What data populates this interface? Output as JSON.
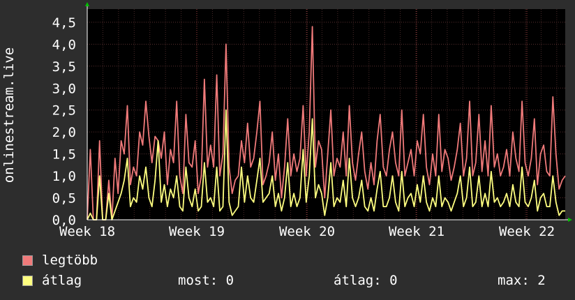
{
  "chart_data": {
    "type": "line",
    "ylabel": "onlinestream.live",
    "ylim": [
      0,
      4.8
    ],
    "yticks": [
      "0,0",
      "0,5",
      "1,0",
      "1,5",
      "2,0",
      "2,5",
      "3,0",
      "3,5",
      "4,0",
      "4,5"
    ],
    "xticks": [
      "Week 18",
      "Week 19",
      "Week 20",
      "Week 21",
      "Week 22"
    ],
    "grid": true,
    "series": [
      {
        "name": "legtöbb",
        "color": "#f07a7a",
        "values": [
          0,
          1.6,
          0,
          0,
          1.8,
          0,
          0,
          0.9,
          0,
          1.4,
          0.6,
          1.8,
          1.5,
          2.6,
          0.8,
          1.2,
          1.0,
          2.0,
          1.7,
          2.7,
          1.9,
          1.3,
          1.9,
          1.8,
          1.4,
          2.0,
          0.8,
          1.6,
          1.3,
          2.7,
          1.0,
          0.6,
          2.4,
          1.3,
          1.2,
          1.8,
          0.6,
          1.0,
          3.2,
          1.2,
          1.7,
          1.2,
          3.3,
          1.0,
          1.5,
          4.0,
          1.2,
          0.6,
          0.9,
          1.0,
          1.8,
          1.3,
          2.2,
          1.2,
          1.4,
          2.0,
          2.7,
          0.8,
          1.0,
          1.3,
          2.0,
          0.9,
          1.5,
          0.5,
          1.2,
          2.3,
          1.0,
          1.5,
          1.1,
          1.4,
          2.6,
          1.0,
          2.0,
          4.4,
          1.2,
          1.8,
          1.6,
          0.5,
          1.5,
          2.5,
          1.0,
          1.4,
          1.2,
          2.0,
          1.0,
          2.6,
          1.3,
          0.9,
          1.5,
          2.0,
          1.1,
          0.7,
          1.3,
          0.8,
          1.8,
          2.4,
          1.2,
          1.0,
          1.6,
          2.0,
          1.3,
          1.0,
          2.5,
          1.0,
          1.3,
          1.6,
          1.0,
          1.8,
          1.5,
          2.4,
          1.2,
          0.8,
          1.5,
          1.0,
          2.4,
          1.1,
          1.6,
          1.4,
          0.9,
          1.2,
          1.6,
          2.2,
          1.0,
          1.4,
          2.7,
          1.0,
          1.3,
          2.4,
          1.1,
          1.8,
          1.0,
          2.6,
          1.2,
          1.5,
          1.0,
          1.2,
          1.6,
          1.0,
          2.0,
          1.4,
          1.1,
          2.7,
          1.3,
          1.0,
          1.4,
          2.3,
          0.8,
          1.5,
          1.7,
          1.1,
          1.0,
          2.8,
          1.5,
          0.7,
          0.9,
          1.0
        ]
      },
      {
        "name": "átlag",
        "color": "#ffff80",
        "values": [
          0,
          0.15,
          0,
          0,
          1.0,
          0,
          0,
          0.6,
          0,
          0.2,
          0.4,
          0.6,
          0.9,
          1.4,
          0.3,
          0.5,
          0.4,
          1.0,
          0.7,
          1.2,
          0.5,
          0.3,
          0.9,
          1.8,
          0.4,
          0.8,
          0.3,
          0.7,
          0.5,
          1.0,
          0.3,
          0.2,
          1.2,
          0.5,
          0.3,
          0.7,
          0.2,
          0.3,
          1.3,
          0.4,
          0.5,
          0.3,
          1.2,
          0.2,
          0.3,
          2.5,
          0.4,
          0.1,
          0.2,
          0.3,
          1.2,
          0.4,
          1.0,
          0.5,
          0.4,
          0.9,
          1.4,
          0.4,
          0.5,
          0.6,
          1.0,
          0.3,
          0.6,
          0.2,
          0.5,
          1.3,
          0.3,
          0.6,
          0.3,
          0.5,
          1.6,
          0.4,
          1.0,
          2.3,
          0.5,
          0.8,
          0.6,
          0.1,
          0.5,
          1.3,
          0.3,
          0.5,
          0.4,
          0.9,
          0.3,
          1.4,
          0.5,
          0.3,
          0.5,
          0.9,
          0.3,
          0.2,
          0.5,
          0.2,
          0.7,
          1.1,
          0.3,
          0.3,
          0.5,
          1.0,
          0.4,
          0.2,
          1.1,
          0.3,
          0.5,
          0.6,
          0.3,
          0.8,
          0.4,
          1.0,
          0.4,
          0.2,
          0.5,
          0.3,
          1.0,
          0.3,
          0.5,
          0.4,
          0.2,
          0.4,
          0.6,
          1.0,
          0.3,
          0.5,
          1.2,
          0.3,
          0.4,
          1.0,
          0.3,
          0.6,
          0.3,
          1.1,
          0.4,
          0.5,
          0.3,
          0.4,
          0.6,
          0.3,
          0.8,
          0.4,
          0.3,
          1.2,
          0.4,
          0.3,
          0.5,
          0.9,
          0.2,
          0.5,
          0.6,
          0.3,
          0.3,
          1.0,
          0.4,
          0.1,
          0.2,
          0.2
        ]
      }
    ]
  },
  "legend": {
    "max_label": "legtöbb",
    "avg_label": "átlag",
    "stat_now": "most: 0",
    "stat_avg": "átlag: 0",
    "stat_max": "max: 2"
  }
}
